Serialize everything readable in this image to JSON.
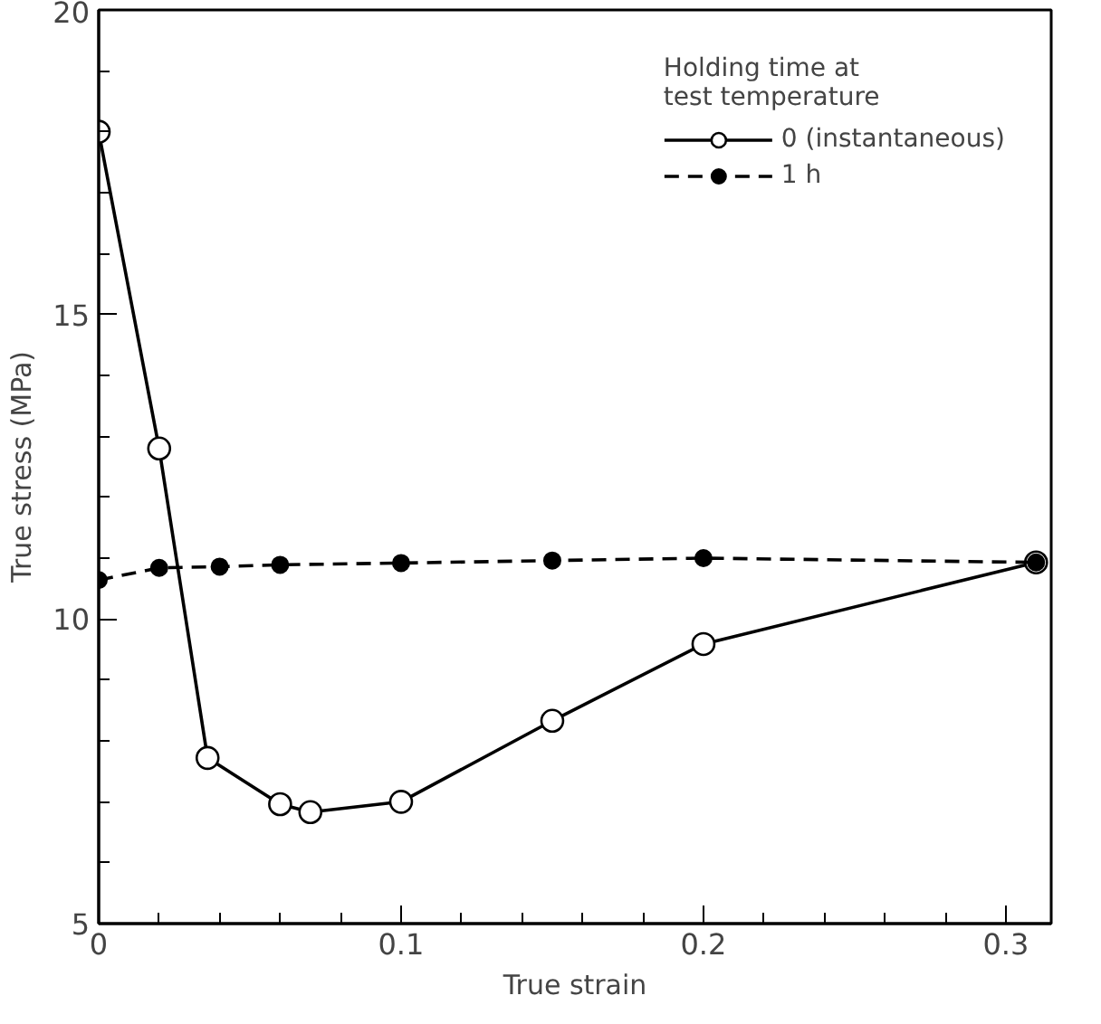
{
  "chart_data": {
    "type": "line",
    "xlabel": "True strain",
    "ylabel": "True stress (MPa)",
    "legend_title": "Holding time at\ntest temperature",
    "xlim": [
      0,
      0.315
    ],
    "ylim": [
      5,
      20
    ],
    "xticks": [
      0,
      {
        "value": 0.02,
        "label": null
      },
      {
        "value": 0.04,
        "label": null
      },
      {
        "value": 0.06,
        "label": null
      },
      {
        "value": 0.08,
        "label": null
      },
      0.1,
      {
        "value": 0.12,
        "label": null
      },
      {
        "value": 0.14,
        "label": null
      },
      {
        "value": 0.16,
        "label": null
      },
      {
        "value": 0.18,
        "label": null
      },
      0.2,
      {
        "value": 0.22,
        "label": null
      },
      {
        "value": 0.24,
        "label": null
      },
      {
        "value": 0.26,
        "label": null
      },
      {
        "value": 0.28,
        "label": null
      },
      0.3
    ],
    "yticks": [
      5,
      {
        "value": 6,
        "label": null
      },
      {
        "value": 7,
        "label": null
      },
      {
        "value": 8,
        "label": null
      },
      {
        "value": 9,
        "label": null
      },
      10,
      {
        "value": 11,
        "label": null
      },
      {
        "value": 12,
        "label": null
      },
      {
        "value": 13,
        "label": null
      },
      {
        "value": 14,
        "label": null
      },
      15,
      {
        "value": 16,
        "label": null
      },
      {
        "value": 17,
        "label": null
      },
      {
        "value": 18,
        "label": null
      },
      {
        "value": 19,
        "label": null
      },
      20
    ],
    "grid": false,
    "legend": "top right",
    "series": [
      {
        "name": "0 (instantaneous)",
        "color": "#000000",
        "marker": "circle_open",
        "line_style": "solid",
        "x": [
          0,
          0.02,
          0.036,
          0.06,
          0.07,
          0.1,
          0.15,
          0.2,
          0.31
        ],
        "values": [
          18.0,
          12.8,
          7.72,
          6.96,
          6.83,
          7.0,
          8.33,
          9.59,
          10.93
        ]
      },
      {
        "name": "1 h",
        "color": "#000000",
        "marker": "circle",
        "line_style": "dashed",
        "x": [
          0,
          0.02,
          0.04,
          0.06,
          0.1,
          0.15,
          0.2,
          0.31
        ],
        "values": [
          10.64,
          10.84,
          10.86,
          10.89,
          10.92,
          10.96,
          11.0,
          10.93
        ]
      }
    ]
  }
}
